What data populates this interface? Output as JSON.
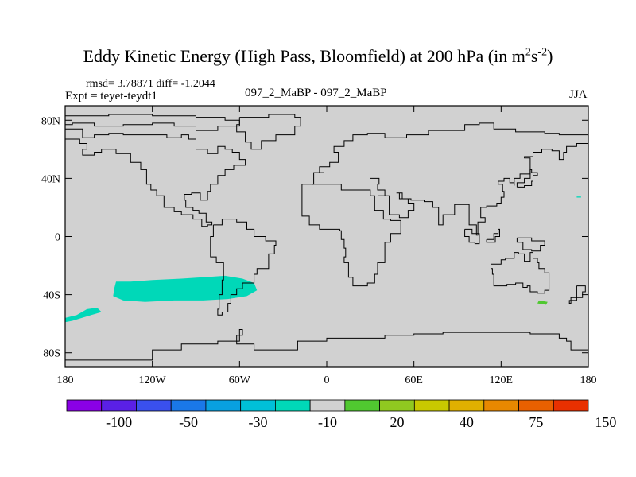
{
  "title": {
    "main": "Eddy Kinetic Energy (High Pass, Bloomfield) at 200 hPa (in m",
    "sup1": "2",
    "mid": "s",
    "sup2": "-2",
    "end": ")"
  },
  "header": {
    "stats": "rmsd= 3.78871 diff= -1.2044",
    "expt": "Expt = teyet-teydt1",
    "experiment_name": "097_2_MaBP - 097_2_MaBP",
    "season": "JJA"
  },
  "colors": {
    "land_background": "#d1d1d1",
    "coastline": "#000000",
    "anomaly_fill": "#00d8b8",
    "positive_fill": "#50c830"
  },
  "chart_data": {
    "type": "heatmap",
    "projection": "cylindrical-equidistant",
    "xlim": [
      -180,
      180
    ],
    "ylim": [
      -90,
      90
    ],
    "x_ticks": [
      {
        "value": -180,
        "label": "180"
      },
      {
        "value": -120,
        "label": "120W"
      },
      {
        "value": -60,
        "label": "60W"
      },
      {
        "value": 0,
        "label": "0"
      },
      {
        "value": 60,
        "label": "60E"
      },
      {
        "value": 120,
        "label": "120E"
      },
      {
        "value": 180,
        "label": "180"
      }
    ],
    "y_ticks": [
      {
        "value": 80,
        "label": "80N"
      },
      {
        "value": 40,
        "label": "40N"
      },
      {
        "value": 0,
        "label": "0"
      },
      {
        "value": -40,
        "label": "40S"
      },
      {
        "value": -80,
        "label": "80S"
      }
    ],
    "colorbar": {
      "colors": [
        "#8a00e6",
        "#5a20e6",
        "#3a50ee",
        "#1a78e8",
        "#08a0e0",
        "#00c0d8",
        "#00d8b8",
        "#d1d1d1",
        "#50c830",
        "#90c820",
        "#c8c800",
        "#e0b000",
        "#e88800",
        "#e86000",
        "#e83000"
      ],
      "labels": [
        {
          "index": 2,
          "text": "-100"
        },
        {
          "index": 4,
          "text": "-50"
        },
        {
          "index": 6,
          "text": "-30"
        },
        {
          "index": 8,
          "text": "-10"
        },
        {
          "index": 10,
          "text": "20"
        },
        {
          "index": 12,
          "text": "40"
        },
        {
          "index": 14,
          "text": "75"
        },
        {
          "index": 16,
          "text": "150"
        }
      ]
    },
    "anomaly_regions": [
      {
        "name": "south-pacific-negative",
        "level": "-10",
        "points": [
          [
            -145,
            -31
          ],
          [
            -135,
            -31
          ],
          [
            -120,
            -30
          ],
          [
            -100,
            -29
          ],
          [
            -85,
            -28
          ],
          [
            -70,
            -27
          ],
          [
            -58,
            -29
          ],
          [
            -50,
            -32
          ],
          [
            -48,
            -37
          ],
          [
            -55,
            -41
          ],
          [
            -68,
            -43
          ],
          [
            -85,
            -44
          ],
          [
            -105,
            -44
          ],
          [
            -125,
            -45
          ],
          [
            -140,
            -44
          ],
          [
            -147,
            -41
          ],
          [
            -146,
            -35
          ]
        ]
      },
      {
        "name": "far-south-pacific-negative",
        "level": "-10",
        "points": [
          [
            -180,
            -56
          ],
          [
            -172,
            -54
          ],
          [
            -165,
            -50
          ],
          [
            -158,
            -49
          ],
          [
            -155,
            -52
          ],
          [
            -162,
            -54
          ],
          [
            -175,
            -58
          ],
          [
            -180,
            -59
          ]
        ]
      },
      {
        "name": "tasman-positive",
        "level": "20",
        "points": [
          [
            146,
            -44
          ],
          [
            152,
            -45
          ],
          [
            151,
            -47
          ],
          [
            145,
            -46
          ]
        ]
      },
      {
        "name": "pacific-north-speck",
        "level": "-10",
        "points": [
          [
            172,
            27.5
          ],
          [
            175,
            27.5
          ],
          [
            175,
            26.8
          ],
          [
            172,
            26.8
          ]
        ]
      }
    ],
    "coastlines": [
      [
        [
          -180,
          83
        ],
        [
          -150,
          84
        ],
        [
          -120,
          83
        ],
        [
          -90,
          82
        ],
        [
          -70,
          80
        ],
        [
          -60,
          76
        ],
        [
          -75,
          73
        ],
        [
          -90,
          76
        ],
        [
          -105,
          78
        ],
        [
          -120,
          77
        ],
        [
          -140,
          76
        ],
        [
          -160,
          78
        ],
        [
          -175,
          77
        ],
        [
          -180,
          77
        ]
      ],
      [
        [
          -180,
          74
        ],
        [
          -168,
          68
        ],
        [
          -160,
          70
        ],
        [
          -150,
          71
        ],
        [
          -140,
          70
        ],
        [
          -125,
          70
        ],
        [
          -110,
          68
        ],
        [
          -100,
          70
        ],
        [
          -95,
          67
        ],
        [
          -90,
          60
        ],
        [
          -82,
          57
        ],
        [
          -75,
          62
        ],
        [
          -70,
          60
        ],
        [
          -65,
          58
        ],
        [
          -60,
          53
        ],
        [
          -56,
          49
        ],
        [
          -64,
          46
        ],
        [
          -70,
          42
        ],
        [
          -75,
          36
        ],
        [
          -80,
          31
        ],
        [
          -82,
          25
        ],
        [
          -87,
          30
        ],
        [
          -93,
          29
        ],
        [
          -98,
          25
        ],
        [
          -97,
          20
        ],
        [
          -92,
          18
        ],
        [
          -88,
          16
        ],
        [
          -83,
          10
        ],
        [
          -79,
          8
        ],
        [
          -82,
          7
        ],
        [
          -86,
          12
        ],
        [
          -92,
          15
        ],
        [
          -100,
          17
        ],
        [
          -105,
          20
        ],
        [
          -112,
          28
        ],
        [
          -117,
          32
        ],
        [
          -121,
          36
        ],
        [
          -124,
          40
        ],
        [
          -124,
          46
        ],
        [
          -128,
          51
        ],
        [
          -135,
          57
        ],
        [
          -145,
          60
        ],
        [
          -155,
          58
        ],
        [
          -160,
          56
        ],
        [
          -168,
          60
        ],
        [
          -165,
          64
        ],
        [
          -170,
          67
        ],
        [
          -180,
          68
        ]
      ],
      [
        [
          -60,
          82
        ],
        [
          -40,
          84
        ],
        [
          -22,
          82
        ],
        [
          -18,
          76
        ],
        [
          -22,
          70
        ],
        [
          -35,
          66
        ],
        [
          -45,
          60
        ],
        [
          -52,
          65
        ],
        [
          -56,
          72
        ],
        [
          -62,
          77
        ],
        [
          -60,
          82
        ]
      ],
      [
        [
          -78,
          8
        ],
        [
          -72,
          12
        ],
        [
          -62,
          10
        ],
        [
          -55,
          5
        ],
        [
          -50,
          0
        ],
        [
          -42,
          -3
        ],
        [
          -35,
          -6
        ],
        [
          -36,
          -12
        ],
        [
          -40,
          -22
        ],
        [
          -48,
          -26
        ],
        [
          -50,
          -32
        ],
        [
          -58,
          -36
        ],
        [
          -62,
          -40
        ],
        [
          -66,
          -46
        ],
        [
          -68,
          -52
        ],
        [
          -72,
          -54
        ],
        [
          -75,
          -50
        ],
        [
          -74,
          -40
        ],
        [
          -72,
          -30
        ],
        [
          -71,
          -18
        ],
        [
          -76,
          -14
        ],
        [
          -80,
          -6
        ],
        [
          -80,
          0
        ],
        [
          -78,
          8
        ]
      ],
      [
        [
          -10,
          36
        ],
        [
          -17,
          21
        ],
        [
          -17,
          14
        ],
        [
          -12,
          8
        ],
        [
          -5,
          5
        ],
        [
          5,
          5
        ],
        [
          9,
          4
        ],
        [
          10,
          -2
        ],
        [
          12,
          -8
        ],
        [
          13,
          -14
        ],
        [
          12,
          -18
        ],
        [
          15,
          -28
        ],
        [
          18,
          -34
        ],
        [
          22,
          -34
        ],
        [
          28,
          -32
        ],
        [
          33,
          -26
        ],
        [
          35,
          -18
        ],
        [
          40,
          -12
        ],
        [
          40,
          -4
        ],
        [
          44,
          2
        ],
        [
          51,
          11
        ],
        [
          44,
          12
        ],
        [
          39,
          18
        ],
        [
          33,
          28
        ],
        [
          30,
          32
        ],
        [
          20,
          32
        ],
        [
          10,
          36
        ],
        [
          0,
          36
        ],
        [
          -10,
          36
        ]
      ],
      [
        [
          -10,
          36
        ],
        [
          -9,
          44
        ],
        [
          -2,
          44
        ],
        [
          -5,
          48
        ],
        [
          2,
          51
        ],
        [
          8,
          54
        ],
        [
          8,
          58
        ],
        [
          5,
          62
        ],
        [
          12,
          66
        ],
        [
          18,
          70
        ],
        [
          28,
          71
        ],
        [
          40,
          68
        ],
        [
          45,
          68
        ],
        [
          55,
          70
        ],
        [
          70,
          73
        ],
        [
          80,
          73
        ],
        [
          95,
          77
        ],
        [
          105,
          78
        ],
        [
          115,
          74
        ],
        [
          130,
          72
        ],
        [
          140,
          72
        ],
        [
          150,
          71
        ],
        [
          160,
          70
        ],
        [
          170,
          70
        ],
        [
          180,
          68
        ]
      ],
      [
        [
          30,
          40
        ],
        [
          36,
          36
        ],
        [
          35,
          32
        ],
        [
          40,
          28
        ],
        [
          35,
          28
        ],
        [
          43,
          15
        ],
        [
          50,
          13
        ],
        [
          56,
          18
        ],
        [
          60,
          23
        ],
        [
          56,
          26
        ],
        [
          50,
          30
        ],
        [
          48,
          30
        ],
        [
          52,
          26
        ],
        [
          58,
          25
        ],
        [
          62,
          25
        ],
        [
          67,
          24
        ],
        [
          73,
          20
        ],
        [
          77,
          8
        ],
        [
          80,
          12
        ],
        [
          80,
          15
        ],
        [
          88,
          22
        ],
        [
          92,
          22
        ],
        [
          98,
          16
        ],
        [
          98,
          8
        ],
        [
          103,
          1
        ],
        [
          104,
          10
        ],
        [
          106,
          10
        ],
        [
          109,
          13
        ],
        [
          106,
          20
        ],
        [
          110,
          21
        ],
        [
          117,
          23
        ],
        [
          120,
          27
        ],
        [
          122,
          31
        ],
        [
          121,
          36
        ],
        [
          118,
          38
        ],
        [
          122,
          40
        ],
        [
          126,
          37
        ],
        [
          129,
          35
        ],
        [
          129,
          40
        ],
        [
          133,
          43
        ],
        [
          140,
          48
        ],
        [
          140,
          54
        ],
        [
          136,
          55
        ],
        [
          142,
          58
        ],
        [
          148,
          60
        ],
        [
          155,
          59
        ],
        [
          160,
          53
        ],
        [
          163,
          58
        ],
        [
          165,
          62
        ],
        [
          172,
          64
        ],
        [
          180,
          66
        ]
      ],
      [
        [
          131,
          34
        ],
        [
          136,
          35
        ],
        [
          141,
          38
        ],
        [
          142,
          42
        ],
        [
          145,
          44
        ],
        [
          141,
          46
        ],
        [
          140,
          40
        ],
        [
          136,
          37
        ],
        [
          131,
          34
        ]
      ],
      [
        [
          113,
          -22
        ],
        [
          114,
          -26
        ],
        [
          115,
          -34
        ],
        [
          120,
          -34
        ],
        [
          124,
          -33
        ],
        [
          130,
          -32
        ],
        [
          135,
          -35
        ],
        [
          138,
          -34
        ],
        [
          140,
          -38
        ],
        [
          145,
          -39
        ],
        [
          150,
          -37
        ],
        [
          153,
          -32
        ],
        [
          153,
          -25
        ],
        [
          150,
          -22
        ],
        [
          146,
          -18
        ],
        [
          145,
          -15
        ],
        [
          142,
          -11
        ],
        [
          140,
          -17
        ],
        [
          136,
          -15
        ],
        [
          136,
          -12
        ],
        [
          132,
          -11
        ],
        [
          129,
          -15
        ],
        [
          123,
          -16
        ],
        [
          120,
          -19
        ],
        [
          113,
          -22
        ]
      ],
      [
        [
          95,
          5
        ],
        [
          100,
          2
        ],
        [
          105,
          -5
        ],
        [
          102,
          -4
        ],
        [
          98,
          0
        ],
        [
          95,
          5
        ]
      ],
      [
        [
          110,
          -2
        ],
        [
          115,
          2
        ],
        [
          118,
          5
        ],
        [
          119,
          0
        ],
        [
          116,
          -4
        ],
        [
          110,
          -2
        ]
      ],
      [
        [
          131,
          -1
        ],
        [
          141,
          -3
        ],
        [
          150,
          -6
        ],
        [
          147,
          -10
        ],
        [
          141,
          -9
        ],
        [
          135,
          -4
        ],
        [
          131,
          -1
        ]
      ],
      [
        [
          172,
          -34
        ],
        [
          178,
          -38
        ],
        [
          176,
          -42
        ],
        [
          168,
          -46
        ],
        [
          167,
          -44
        ],
        [
          172,
          -40
        ],
        [
          172,
          -34
        ]
      ],
      [
        [
          -180,
          -85
        ],
        [
          -150,
          -85
        ],
        [
          -120,
          -78
        ],
        [
          -100,
          -74
        ],
        [
          -75,
          -72
        ],
        [
          -60,
          -64
        ],
        [
          -58,
          -68
        ],
        [
          -62,
          -74
        ],
        [
          -50,
          -78
        ],
        [
          -35,
          -78
        ],
        [
          -20,
          -72
        ],
        [
          0,
          -70
        ],
        [
          20,
          -70
        ],
        [
          40,
          -68
        ],
        [
          60,
          -67
        ],
        [
          80,
          -66
        ],
        [
          100,
          -66
        ],
        [
          120,
          -66
        ],
        [
          140,
          -67
        ],
        [
          160,
          -70
        ],
        [
          165,
          -72
        ],
        [
          168,
          -78
        ],
        [
          180,
          -80
        ]
      ],
      [
        [
          -180,
          -90
        ],
        [
          180,
          -90
        ],
        [
          180,
          90
        ],
        [
          -180,
          90
        ],
        [
          -180,
          -90
        ]
      ]
    ]
  }
}
